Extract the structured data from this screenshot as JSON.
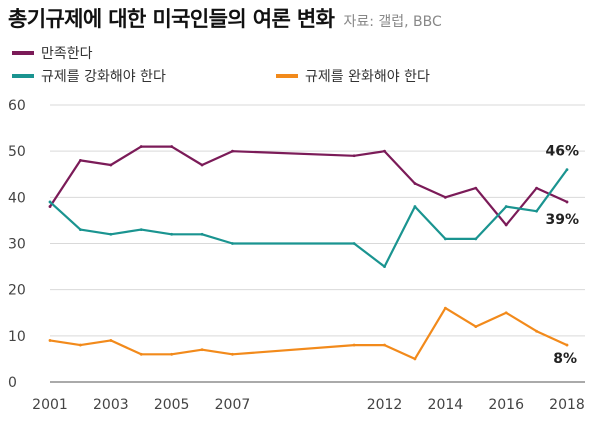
{
  "header": {
    "title": "총기규제에 대한 미국인들의 여론 변화",
    "source": "자료: 갤럽, BBC"
  },
  "chart_data": {
    "type": "line",
    "title": "총기규제에 대한 미국인들의 여론 변화",
    "xlabel": "",
    "ylabel": "",
    "ylim": [
      0,
      60
    ],
    "xlim": [
      2001,
      2018
    ],
    "yticks": [
      "0",
      "10",
      "20",
      "30",
      "40",
      "50",
      "60"
    ],
    "xticks": [
      "2001",
      "2003",
      "2005",
      "2007",
      "2012",
      "2014",
      "2016",
      "2018"
    ],
    "x": [
      2001,
      2002,
      2003,
      2004,
      2005,
      2006,
      2007,
      2008,
      2009,
      2010,
      2011,
      2012,
      2013,
      2014,
      2015,
      2016,
      2017,
      2018
    ],
    "series": [
      {
        "name": "만족한다",
        "color": "#7b1b58",
        "values": [
          38,
          48,
          47,
          51,
          51,
          47,
          50,
          49,
          50,
          43,
          40,
          42,
          34,
          42,
          39
        ],
        "x": [
          2001,
          2002,
          2003,
          2004,
          2005,
          2006,
          2007,
          2011,
          2012,
          2013,
          2014,
          2015,
          2016,
          2017,
          2018
        ],
        "end_label": "39%"
      },
      {
        "name": "규제를 강화해야 한다",
        "color": "#1a9490",
        "values": [
          39,
          33,
          32,
          33,
          32,
          32,
          30,
          30,
          25,
          38,
          31,
          31,
          38,
          37,
          46
        ],
        "x": [
          2001,
          2002,
          2003,
          2004,
          2005,
          2006,
          2007,
          2011,
          2012,
          2013,
          2014,
          2015,
          2016,
          2017,
          2018
        ],
        "end_label": "46%"
      },
      {
        "name": "규제를 완화해야 한다",
        "color": "#f28a1b",
        "values": [
          9,
          8,
          9,
          6,
          6,
          7,
          6,
          8,
          8,
          5,
          16,
          12,
          15,
          11,
          8
        ],
        "x": [
          2001,
          2002,
          2003,
          2004,
          2005,
          2006,
          2007,
          2011,
          2012,
          2013,
          2014,
          2015,
          2016,
          2017,
          2018
        ],
        "end_label": "8%"
      }
    ]
  }
}
